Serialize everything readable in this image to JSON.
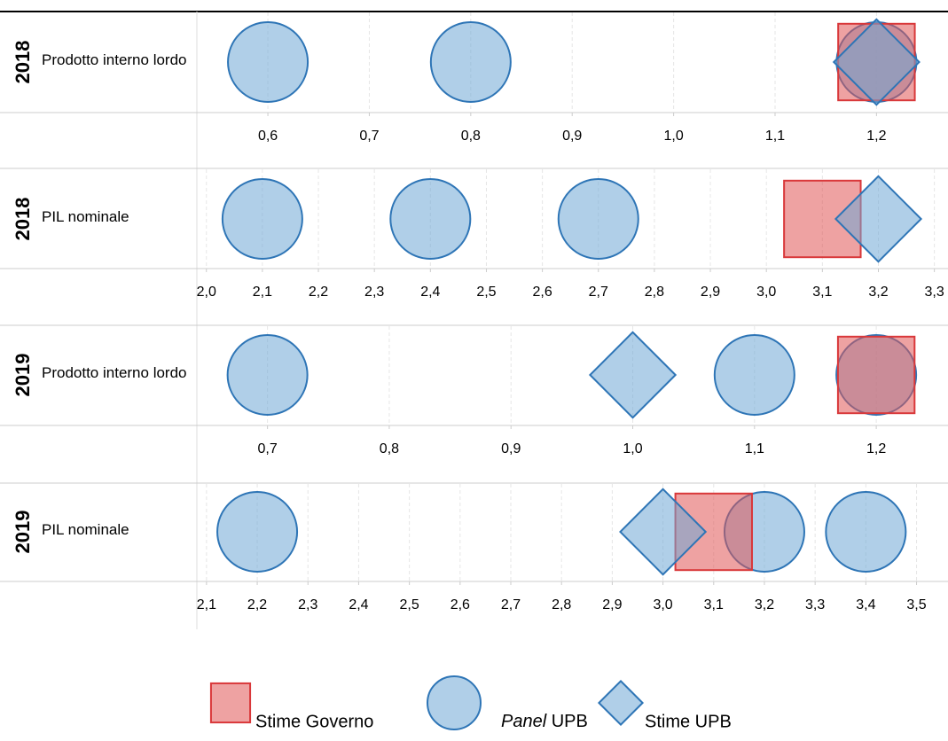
{
  "legend": {
    "series": [
      {
        "name": "Stime Governo",
        "color": "#e05555",
        "marker": "square"
      },
      {
        "name": "Panel UPB",
        "color": "#6fa8d6",
        "marker": "circle"
      },
      {
        "name": "Stime UPB",
        "color": "#6fa8d6",
        "marker": "diamond"
      }
    ]
  },
  "chart_data": [
    {
      "type": "scatter",
      "year": "2018",
      "label": "Prodotto interno lordo",
      "xlim": [
        0.53,
        1.267
      ],
      "grid": true,
      "xticks": [
        {
          "value": 0.6,
          "label": "0,6"
        },
        {
          "value": 0.7,
          "label": "0,7"
        },
        {
          "value": 0.8,
          "label": "0,8"
        },
        {
          "value": 0.9,
          "label": "0,9"
        },
        {
          "value": 1.0,
          "label": "1,0"
        },
        {
          "value": 1.1,
          "label": "1,1"
        },
        {
          "value": 1.2,
          "label": "1,2"
        }
      ],
      "series": [
        {
          "values": [
            1.2
          ]
        },
        {
          "values": [
            0.6,
            0.8,
            1.2
          ]
        },
        {
          "values": [
            1.2
          ]
        }
      ]
    },
    {
      "type": "scatter",
      "year": "2018",
      "label": "PIL nominale",
      "xlim": [
        1.983,
        3.318
      ],
      "grid": true,
      "xticks": [
        {
          "value": 2.0,
          "label": "2,0"
        },
        {
          "value": 2.1,
          "label": "2,1"
        },
        {
          "value": 2.2,
          "label": "2,2"
        },
        {
          "value": 2.3,
          "label": "2,3"
        },
        {
          "value": 2.4,
          "label": "2,4"
        },
        {
          "value": 2.5,
          "label": "2,5"
        },
        {
          "value": 2.6,
          "label": "2,6"
        },
        {
          "value": 2.7,
          "label": "2,7"
        },
        {
          "value": 2.8,
          "label": "2,8"
        },
        {
          "value": 2.9,
          "label": "2,9"
        },
        {
          "value": 3.0,
          "label": "3,0"
        },
        {
          "value": 3.1,
          "label": "3,1"
        },
        {
          "value": 3.2,
          "label": "3,2"
        },
        {
          "value": 3.3,
          "label": "3,3"
        }
      ],
      "series": [
        {
          "values": [
            3.1
          ]
        },
        {
          "values": [
            2.1,
            2.4,
            2.7
          ]
        },
        {
          "values": [
            3.2
          ]
        }
      ]
    },
    {
      "type": "scatter",
      "year": "2019",
      "label": "Prodotto interno lordo",
      "xlim": [
        0.642,
        1.256
      ],
      "grid": true,
      "xticks": [
        {
          "value": 0.7,
          "label": "0,7"
        },
        {
          "value": 0.8,
          "label": "0,8"
        },
        {
          "value": 0.9,
          "label": "0,9"
        },
        {
          "value": 1.0,
          "label": "1,0"
        },
        {
          "value": 1.1,
          "label": "1,1"
        },
        {
          "value": 1.2,
          "label": "1,2"
        }
      ],
      "series": [
        {
          "values": [
            1.2
          ]
        },
        {
          "values": [
            0.7,
            1.1,
            1.2
          ]
        },
        {
          "values": [
            1.0
          ]
        }
      ]
    },
    {
      "type": "scatter",
      "year": "2019",
      "label": "PIL nominale",
      "xlim": [
        2.081,
        3.555
      ],
      "grid": true,
      "xticks": [
        {
          "value": 2.1,
          "label": "2,1"
        },
        {
          "value": 2.2,
          "label": "2,2"
        },
        {
          "value": 2.3,
          "label": "2,3"
        },
        {
          "value": 2.4,
          "label": "2,4"
        },
        {
          "value": 2.5,
          "label": "2,5"
        },
        {
          "value": 2.6,
          "label": "2,6"
        },
        {
          "value": 2.7,
          "label": "2,7"
        },
        {
          "value": 2.8,
          "label": "2,8"
        },
        {
          "value": 2.9,
          "label": "2,9"
        },
        {
          "value": 3.0,
          "label": "3,0"
        },
        {
          "value": 3.1,
          "label": "3,1"
        },
        {
          "value": 3.2,
          "label": "3,2"
        },
        {
          "value": 3.3,
          "label": "3,3"
        },
        {
          "value": 3.4,
          "label": "3,4"
        },
        {
          "value": 3.5,
          "label": "3,5"
        }
      ],
      "series": [
        {
          "values": [
            3.1
          ]
        },
        {
          "values": [
            2.2,
            3.2,
            3.4
          ]
        },
        {
          "values": [
            3.0
          ]
        }
      ]
    }
  ]
}
